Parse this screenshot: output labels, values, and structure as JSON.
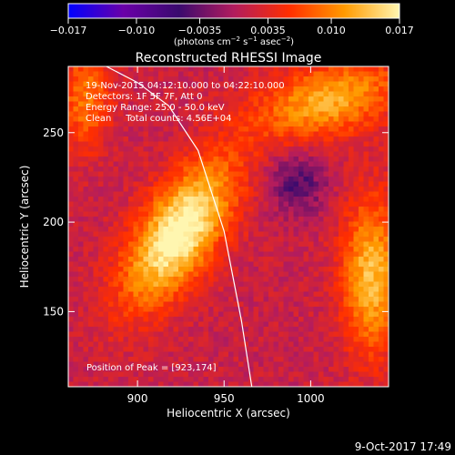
{
  "chart_data": {
    "type": "heatmap",
    "title": "Reconstructed RHESSI Image",
    "xlabel": "Heliocentric X (arcsec)",
    "ylabel": "Heliocentric Y (arcsec)",
    "xlim": [
      860,
      1045
    ],
    "ylim": [
      108,
      287
    ],
    "x_ticks": [
      900,
      950,
      1000
    ],
    "y_ticks": [
      150,
      200,
      250
    ],
    "colorbar": {
      "range": [
        -0.017,
        0.017
      ],
      "tick_values": [
        -0.017,
        -0.01,
        -0.0035,
        0.0035,
        0.01,
        0.017
      ],
      "tick_labels": [
        "−0.017",
        "−0.010",
        "−0.0035",
        "0.0035",
        "0.010",
        "0.017"
      ],
      "label_parts": [
        "(photons cm",
        "−2",
        " s",
        "−1",
        " asec",
        "−2",
        ")"
      ],
      "colors": [
        "#0000ff",
        "#6a00a8",
        "#3a0a6e",
        "#b21c5e",
        "#ff2e00",
        "#ff9a00",
        "#fff6b0"
      ]
    },
    "annotations": [
      "19-Nov-2015 04:12:10.000 to 04:22:10.000",
      "Detectors: 1F 5F 7F, Att 0",
      "Energy Range: 25.0 - 50.0 keV",
      "Clean     Total counts: 4.56E+04"
    ],
    "peak_label": "Position of Peak = [923,174]",
    "peak": [
      923,
      174
    ],
    "limb": [
      [
        882,
        287
      ],
      [
        900,
        278
      ],
      [
        918,
        265
      ],
      [
        935,
        240
      ],
      [
        950,
        195
      ],
      [
        960,
        145
      ],
      [
        966,
        108
      ]
    ],
    "sources": [
      {
        "x": 924,
        "y": 194,
        "amplitude": 0.017,
        "sx": 15,
        "sy": 32,
        "rotation_deg": -35
      },
      {
        "x": 1035,
        "y": 170,
        "amplitude": 0.012,
        "sx": 12,
        "sy": 30,
        "rotation_deg": 0
      },
      {
        "x": 1010,
        "y": 268,
        "amplitude": 0.011,
        "sx": 30,
        "sy": 14,
        "rotation_deg": 15
      },
      {
        "x": 870,
        "y": 270,
        "amplitude": 0.008,
        "sx": 10,
        "sy": 20,
        "rotation_deg": 0
      },
      {
        "x": 992,
        "y": 222,
        "amplitude": -0.006,
        "sx": 12,
        "sy": 12,
        "rotation_deg": 0
      }
    ],
    "background": 0.0015,
    "grid": false,
    "timestamp": "9-Oct-2017 17:49"
  }
}
